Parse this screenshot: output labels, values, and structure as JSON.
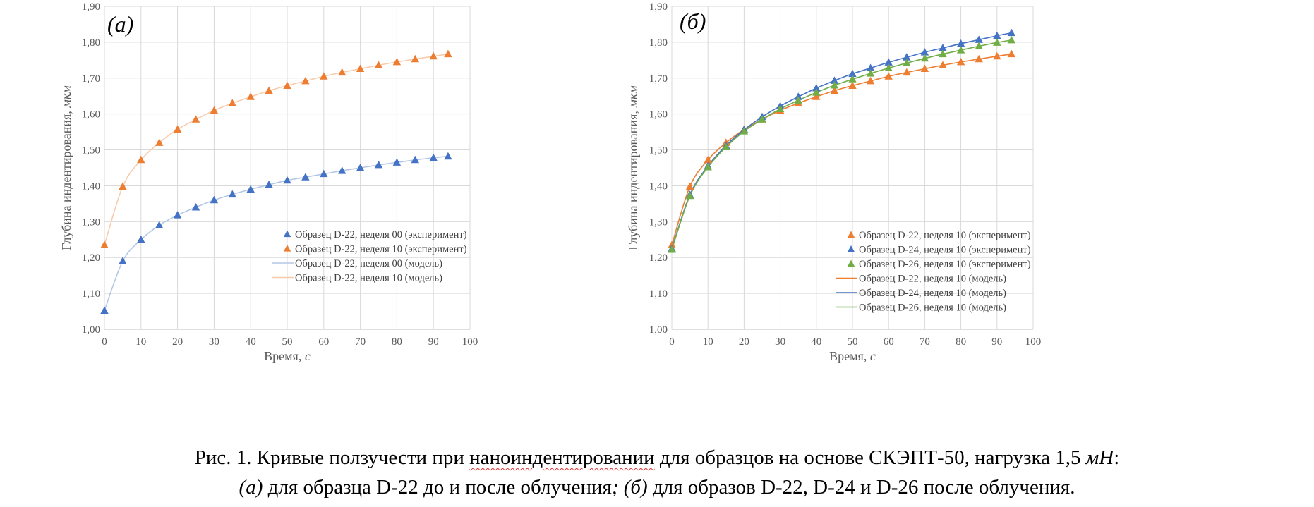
{
  "colors": {
    "orange": "#ed7d31",
    "blue": "#4472c4",
    "green": "#70ad47",
    "orange_line": "#f8cbad",
    "blue_line": "#b4c7e7",
    "green_line": "#c5e0b4",
    "grid": "#d9d9d9"
  },
  "chart_data": [
    {
      "type": "scatter",
      "panel_label": "(а)",
      "xlabel": "Время, с",
      "ylabel": "Глубина индентирования, мкм",
      "xlim": [
        0,
        100
      ],
      "ylim": [
        1.0,
        1.9
      ],
      "x_ticks": [
        "0",
        "10",
        "20",
        "30",
        "40",
        "50",
        "60",
        "70",
        "80",
        "90",
        "100"
      ],
      "y_ticks": [
        "1,00",
        "1,10",
        "1,20",
        "1,30",
        "1,40",
        "1,50",
        "1,60",
        "1,70",
        "1,80",
        "1,90"
      ],
      "grid": true,
      "legend_position": "bottom-right",
      "x": [
        0,
        5,
        10,
        15,
        20,
        25,
        30,
        35,
        40,
        45,
        50,
        55,
        60,
        65,
        70,
        75,
        80,
        85,
        90,
        94
      ],
      "series": [
        {
          "name": "Образец D-22, неделя 00 (эксперимент)",
          "kind": "markers",
          "color": "blue",
          "values": [
            1.052,
            1.19,
            1.25,
            1.29,
            1.318,
            1.34,
            1.36,
            1.376,
            1.39,
            1.403,
            1.415,
            1.424,
            1.433,
            1.442,
            1.45,
            1.458,
            1.465,
            1.472,
            1.478,
            1.482
          ]
        },
        {
          "name": "Образец D-22, неделя 10 (эксперимент)",
          "kind": "markers",
          "color": "orange",
          "values": [
            1.235,
            1.398,
            1.472,
            1.52,
            1.557,
            1.585,
            1.61,
            1.63,
            1.648,
            1.665,
            1.679,
            1.692,
            1.705,
            1.716,
            1.726,
            1.736,
            1.745,
            1.753,
            1.761,
            1.767
          ]
        },
        {
          "name": "Образец D-22, неделя 00 (модель)",
          "kind": "line",
          "color": "blue_line",
          "values": [
            1.052,
            1.19,
            1.25,
            1.29,
            1.318,
            1.34,
            1.36,
            1.376,
            1.39,
            1.403,
            1.415,
            1.424,
            1.433,
            1.442,
            1.45,
            1.458,
            1.465,
            1.472,
            1.478,
            1.482
          ]
        },
        {
          "name": "Образец D-22, неделя 10 (модель)",
          "kind": "line",
          "color": "orange_line",
          "values": [
            1.235,
            1.398,
            1.472,
            1.52,
            1.557,
            1.585,
            1.61,
            1.63,
            1.648,
            1.665,
            1.679,
            1.692,
            1.705,
            1.716,
            1.726,
            1.736,
            1.745,
            1.753,
            1.761,
            1.767
          ]
        }
      ]
    },
    {
      "type": "scatter",
      "panel_label": "(б)",
      "xlabel": "Время, с",
      "ylabel": "Глубина индентирования, мкм",
      "xlim": [
        0,
        100
      ],
      "ylim": [
        1.0,
        1.9
      ],
      "x_ticks": [
        "0",
        "10",
        "20",
        "30",
        "40",
        "50",
        "60",
        "70",
        "80",
        "90",
        "100"
      ],
      "y_ticks": [
        "1,00",
        "1,10",
        "1,20",
        "1,30",
        "1,40",
        "1,50",
        "1,60",
        "1,70",
        "1,80",
        "1,90"
      ],
      "grid": true,
      "legend_position": "bottom-right",
      "x": [
        0,
        5,
        10,
        15,
        20,
        25,
        30,
        35,
        40,
        45,
        50,
        55,
        60,
        65,
        70,
        75,
        80,
        85,
        90,
        94
      ],
      "series": [
        {
          "name": "Образец D-22, неделя 10 (эксперимент)",
          "kind": "markers",
          "color": "orange",
          "values": [
            1.235,
            1.398,
            1.472,
            1.52,
            1.557,
            1.585,
            1.61,
            1.63,
            1.648,
            1.665,
            1.679,
            1.692,
            1.705,
            1.716,
            1.726,
            1.736,
            1.745,
            1.753,
            1.761,
            1.767
          ]
        },
        {
          "name": "Образец D-24, неделя 10 (эксперимент)",
          "kind": "markers",
          "color": "blue",
          "values": [
            1.225,
            1.375,
            1.455,
            1.512,
            1.556,
            1.592,
            1.622,
            1.648,
            1.672,
            1.693,
            1.712,
            1.728,
            1.744,
            1.758,
            1.772,
            1.784,
            1.796,
            1.807,
            1.818,
            1.826
          ]
        },
        {
          "name": "Образец D-26, неделя 10 (эксперимент)",
          "kind": "markers",
          "color": "green",
          "values": [
            1.222,
            1.372,
            1.452,
            1.508,
            1.552,
            1.585,
            1.614,
            1.638,
            1.66,
            1.68,
            1.697,
            1.713,
            1.728,
            1.742,
            1.755,
            1.767,
            1.778,
            1.789,
            1.799,
            1.806
          ]
        },
        {
          "name": "Образец D-22, неделя 10 (модель)",
          "kind": "line",
          "color": "orange",
          "values": [
            1.235,
            1.398,
            1.472,
            1.52,
            1.557,
            1.585,
            1.61,
            1.63,
            1.648,
            1.665,
            1.679,
            1.692,
            1.705,
            1.716,
            1.726,
            1.736,
            1.745,
            1.753,
            1.761,
            1.767
          ]
        },
        {
          "name": "Образец D-24, неделя 10 (модель)",
          "kind": "line",
          "color": "blue",
          "values": [
            1.225,
            1.375,
            1.455,
            1.512,
            1.556,
            1.592,
            1.622,
            1.648,
            1.672,
            1.693,
            1.712,
            1.728,
            1.744,
            1.758,
            1.772,
            1.784,
            1.796,
            1.807,
            1.818,
            1.826
          ]
        },
        {
          "name": "Образец D-26, неделя 10 (модель)",
          "kind": "line",
          "color": "green",
          "values": [
            1.222,
            1.372,
            1.452,
            1.508,
            1.552,
            1.585,
            1.614,
            1.638,
            1.66,
            1.68,
            1.697,
            1.713,
            1.728,
            1.742,
            1.755,
            1.767,
            1.778,
            1.789,
            1.799,
            1.806
          ]
        }
      ]
    }
  ],
  "caption": {
    "line1_start": "Рис. 1. Кривые ползучести при ",
    "line1_underlined": "наноиндентировании",
    "line1_mid": " для образцов на основе СКЭПТ-50, нагрузка 1,5 ",
    "line1_unit": "мН",
    "line1_end": ":",
    "line2_a": "(а)",
    "line2_a_text": " для образца D-22 до и после облучения",
    "line2_sep": "; (б)",
    "line2_b_text": " для образов D-22, D-24 и D-26 после облучения."
  }
}
